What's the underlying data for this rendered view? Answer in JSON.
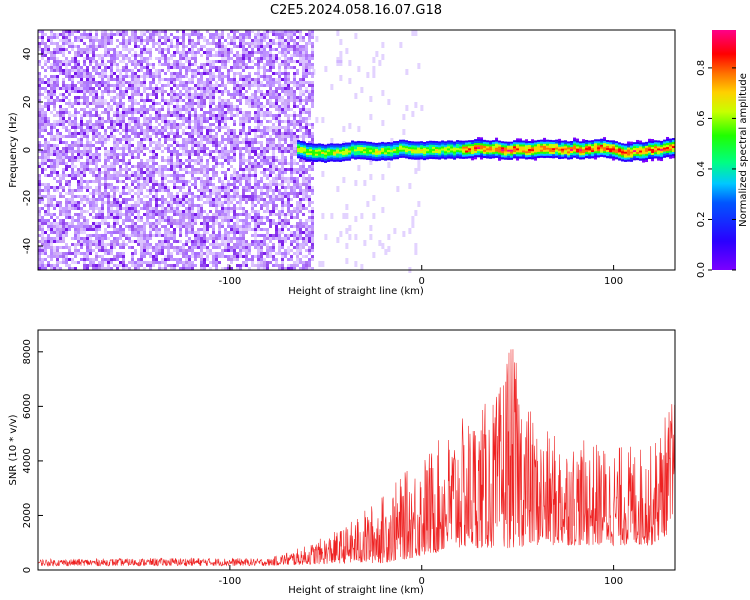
{
  "title": "C2E5.2024.058.16.07.G18",
  "chart_data": [
    {
      "type": "heatmap",
      "title": "C2E5.2024.058.16.07.G18",
      "xlabel": "Height of straight line (km)",
      "ylabel": "Frequency (Hz)",
      "xlim": [
        -200,
        132
      ],
      "ylim": [
        -50,
        50
      ],
      "x_ticks": [
        -100,
        0,
        100
      ],
      "y_ticks": [
        -40,
        -20,
        0,
        20,
        40
      ],
      "grid": false,
      "colorbar": {
        "label": "Normalized spectral amplitude",
        "range": [
          0.0,
          0.95
        ],
        "ticks": [
          0.0,
          0.2,
          0.4,
          0.6,
          0.8
        ],
        "colormap": [
          "#7b00ff",
          "#0000ff",
          "#00c8ff",
          "#00ff40",
          "#ffff00",
          "#ff8000",
          "#ff0000",
          "#ff0080"
        ]
      },
      "regions": [
        {
          "x_range": [
            -200,
            -57
          ],
          "description_value": "diffuse noise 0.0-0.3 across full frequency band"
        },
        {
          "x_range": [
            -65,
            132
          ],
          "center_frequency_hz": 0,
          "peak_amplitude": 0.85
        }
      ]
    },
    {
      "type": "line",
      "xlabel": "Height of straight line (km)",
      "ylabel": "SNR (10 * v/v)",
      "xlim": [
        -200,
        132
      ],
      "ylim": [
        0,
        8800
      ],
      "x_ticks": [
        -100,
        0,
        100
      ],
      "y_ticks": [
        0,
        2000,
        4000,
        6000,
        8000
      ],
      "color": "#ee2222",
      "grid": false,
      "envelope": [
        {
          "x": -200,
          "low": 150,
          "high": 400
        },
        {
          "x": -160,
          "low": 150,
          "high": 420
        },
        {
          "x": -120,
          "low": 150,
          "high": 450
        },
        {
          "x": -80,
          "low": 150,
          "high": 420
        },
        {
          "x": -60,
          "low": 200,
          "high": 900
        },
        {
          "x": -40,
          "low": 250,
          "high": 1600
        },
        {
          "x": -20,
          "low": 250,
          "high": 2800
        },
        {
          "x": 0,
          "low": 500,
          "high": 4200
        },
        {
          "x": 20,
          "low": 800,
          "high": 5500
        },
        {
          "x": 40,
          "low": 800,
          "high": 6500
        },
        {
          "x": 45,
          "low": 800,
          "high": 8700
        },
        {
          "x": 60,
          "low": 900,
          "high": 5200
        },
        {
          "x": 80,
          "low": 900,
          "high": 4800
        },
        {
          "x": 100,
          "low": 900,
          "high": 4600
        },
        {
          "x": 120,
          "low": 900,
          "high": 4600
        },
        {
          "x": 132,
          "low": 1500,
          "high": 6600
        }
      ]
    }
  ]
}
